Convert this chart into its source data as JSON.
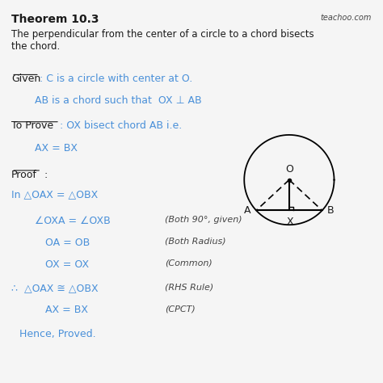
{
  "bg_color": "#f5f5f5",
  "title": "Theorem 10.3",
  "watermark": "teachoo.com",
  "theorem_text_1": "The perpendicular from the center of a circle to a chord bisects",
  "theorem_text_2": "the chord.",
  "given_label": "Given",
  "given_text1": ": C is a circle with center at O.",
  "given_text2": "AB is a chord such that  OX ⊥ AB",
  "toprove_label": "To Prove",
  "toprove_text1": ": OX bisect chord AB i.e.",
  "toprove_text2": "AX = BX",
  "proof_label": "Proof",
  "proof_colon": " :",
  "line1": "In △OAX = △OBX",
  "line2a": "∠OXA = ∠OXB",
  "line2b": "(Both 90°, given)",
  "line3a": "OA = OB",
  "line3b": "(Both Radius)",
  "line4a": "OX = OX",
  "line4b": "(Common)",
  "line5a": "∴  △OAX ≅ △OBX",
  "line5b": "(RHS Rule)",
  "line6a": "AX = BX",
  "line6b": "(CPCT)",
  "line7": "Hence, Proved.",
  "blue_color": "#4a90d9",
  "dark_color": "#444444",
  "black_color": "#1a1a1a"
}
